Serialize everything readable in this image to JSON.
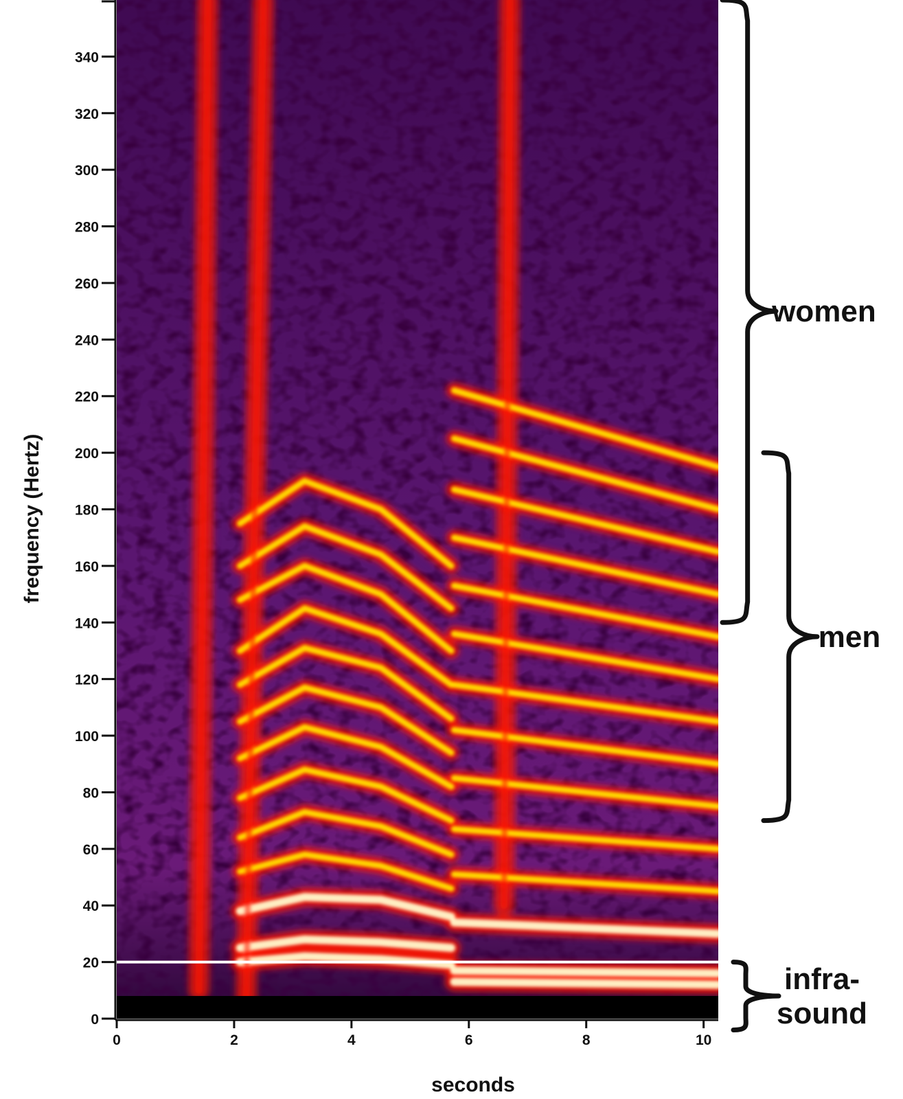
{
  "chart_data": {
    "type": "heatmap",
    "title": "",
    "xlabel": "seconds",
    "ylabel": "frequency (Hertz)",
    "xlim": [
      0,
      10.25
    ],
    "ylim": [
      0,
      360
    ],
    "x_ticks": [
      0,
      2,
      4,
      6,
      8,
      10
    ],
    "y_ticks": [
      0,
      20,
      40,
      60,
      80,
      100,
      120,
      140,
      160,
      180,
      200,
      220,
      240,
      260,
      280,
      300,
      320,
      340
    ],
    "highlighted_tick": {
      "value": 20,
      "color": "#d4621a"
    },
    "colormap": [
      "#000000",
      "#3a0a4e",
      "#7a1a8c",
      "#ff1a00",
      "#ffe000",
      "#fffacd"
    ],
    "reference_line": {
      "y": 20,
      "color": "#ffffff"
    },
    "ranges": [
      {
        "label": "women",
        "y_from": 140,
        "y_to": 360
      },
      {
        "label": "men",
        "y_from": 70,
        "y_to": 200
      },
      {
        "label": "infra-\nsound",
        "y_from": 0,
        "y_to": 20
      }
    ],
    "series": [
      {
        "x": [
          2.1,
          3.2,
          4.5,
          5.7
        ],
        "values": [
          20,
          22,
          21,
          19
        ]
      },
      {
        "x": [
          2.1,
          3.2,
          4.5,
          5.7
        ],
        "values": [
          25,
          28,
          27,
          25
        ]
      },
      {
        "x": [
          2.1,
          3.2,
          4.5,
          5.7
        ],
        "values": [
          38,
          43,
          42,
          36
        ]
      },
      {
        "x": [
          2.1,
          3.2,
          4.5,
          5.7
        ],
        "values": [
          52,
          58,
          54,
          46
        ]
      },
      {
        "x": [
          2.1,
          3.2,
          4.5,
          5.7
        ],
        "values": [
          64,
          73,
          68,
          58
        ]
      },
      {
        "x": [
          2.1,
          3.2,
          4.5,
          5.7
        ],
        "values": [
          78,
          88,
          82,
          70
        ]
      },
      {
        "x": [
          2.1,
          3.2,
          4.5,
          5.7
        ],
        "values": [
          92,
          103,
          96,
          82
        ]
      },
      {
        "x": [
          2.1,
          3.2,
          4.5,
          5.7
        ],
        "values": [
          105,
          117,
          110,
          94
        ]
      },
      {
        "x": [
          2.1,
          3.2,
          4.5,
          5.7
        ],
        "values": [
          118,
          131,
          124,
          106
        ]
      },
      {
        "x": [
          2.1,
          3.2,
          4.5,
          5.7
        ],
        "values": [
          130,
          145,
          136,
          118
        ]
      },
      {
        "x": [
          2.1,
          3.2,
          4.5,
          5.7
        ],
        "values": [
          148,
          160,
          150,
          130
        ]
      },
      {
        "x": [
          2.1,
          3.2,
          4.5,
          5.7
        ],
        "values": [
          160,
          174,
          164,
          145
        ]
      },
      {
        "x": [
          2.1,
          3.2,
          4.5,
          5.7
        ],
        "values": [
          175,
          190,
          180,
          160
        ]
      },
      {
        "x": [
          5.75,
          10.25
        ],
        "values": [
          13,
          12
        ]
      },
      {
        "x": [
          5.75,
          10.25
        ],
        "values": [
          17,
          16
        ]
      },
      {
        "x": [
          5.75,
          10.25
        ],
        "values": [
          34,
          30
        ]
      },
      {
        "x": [
          5.75,
          10.25
        ],
        "values": [
          51,
          45
        ]
      },
      {
        "x": [
          5.75,
          10.25
        ],
        "values": [
          67,
          60
        ]
      },
      {
        "x": [
          5.75,
          10.25
        ],
        "values": [
          85,
          75
        ]
      },
      {
        "x": [
          5.75,
          10.25
        ],
        "values": [
          102,
          90
        ]
      },
      {
        "x": [
          5.75,
          10.25
        ],
        "values": [
          118,
          105
        ]
      },
      {
        "x": [
          5.75,
          10.25
        ],
        "values": [
          136,
          120
        ]
      },
      {
        "x": [
          5.75,
          10.25
        ],
        "values": [
          153,
          135
        ]
      },
      {
        "x": [
          5.75,
          10.25
        ],
        "values": [
          170,
          150
        ]
      },
      {
        "x": [
          5.75,
          10.25
        ],
        "values": [
          187,
          165
        ]
      },
      {
        "x": [
          5.75,
          10.25
        ],
        "values": [
          205,
          180
        ]
      },
      {
        "x": [
          5.75,
          10.25
        ],
        "values": [
          222,
          195
        ]
      },
      {
        "x": [
          2.2,
          2.5
        ],
        "values": [
          0,
          360
        ]
      },
      {
        "x": [
          6.6,
          6.7
        ],
        "values": [
          40,
          360
        ]
      },
      {
        "x": [
          1.4,
          1.55
        ],
        "values": [
          10,
          360
        ]
      }
    ],
    "grid": false,
    "legend": "none"
  }
}
